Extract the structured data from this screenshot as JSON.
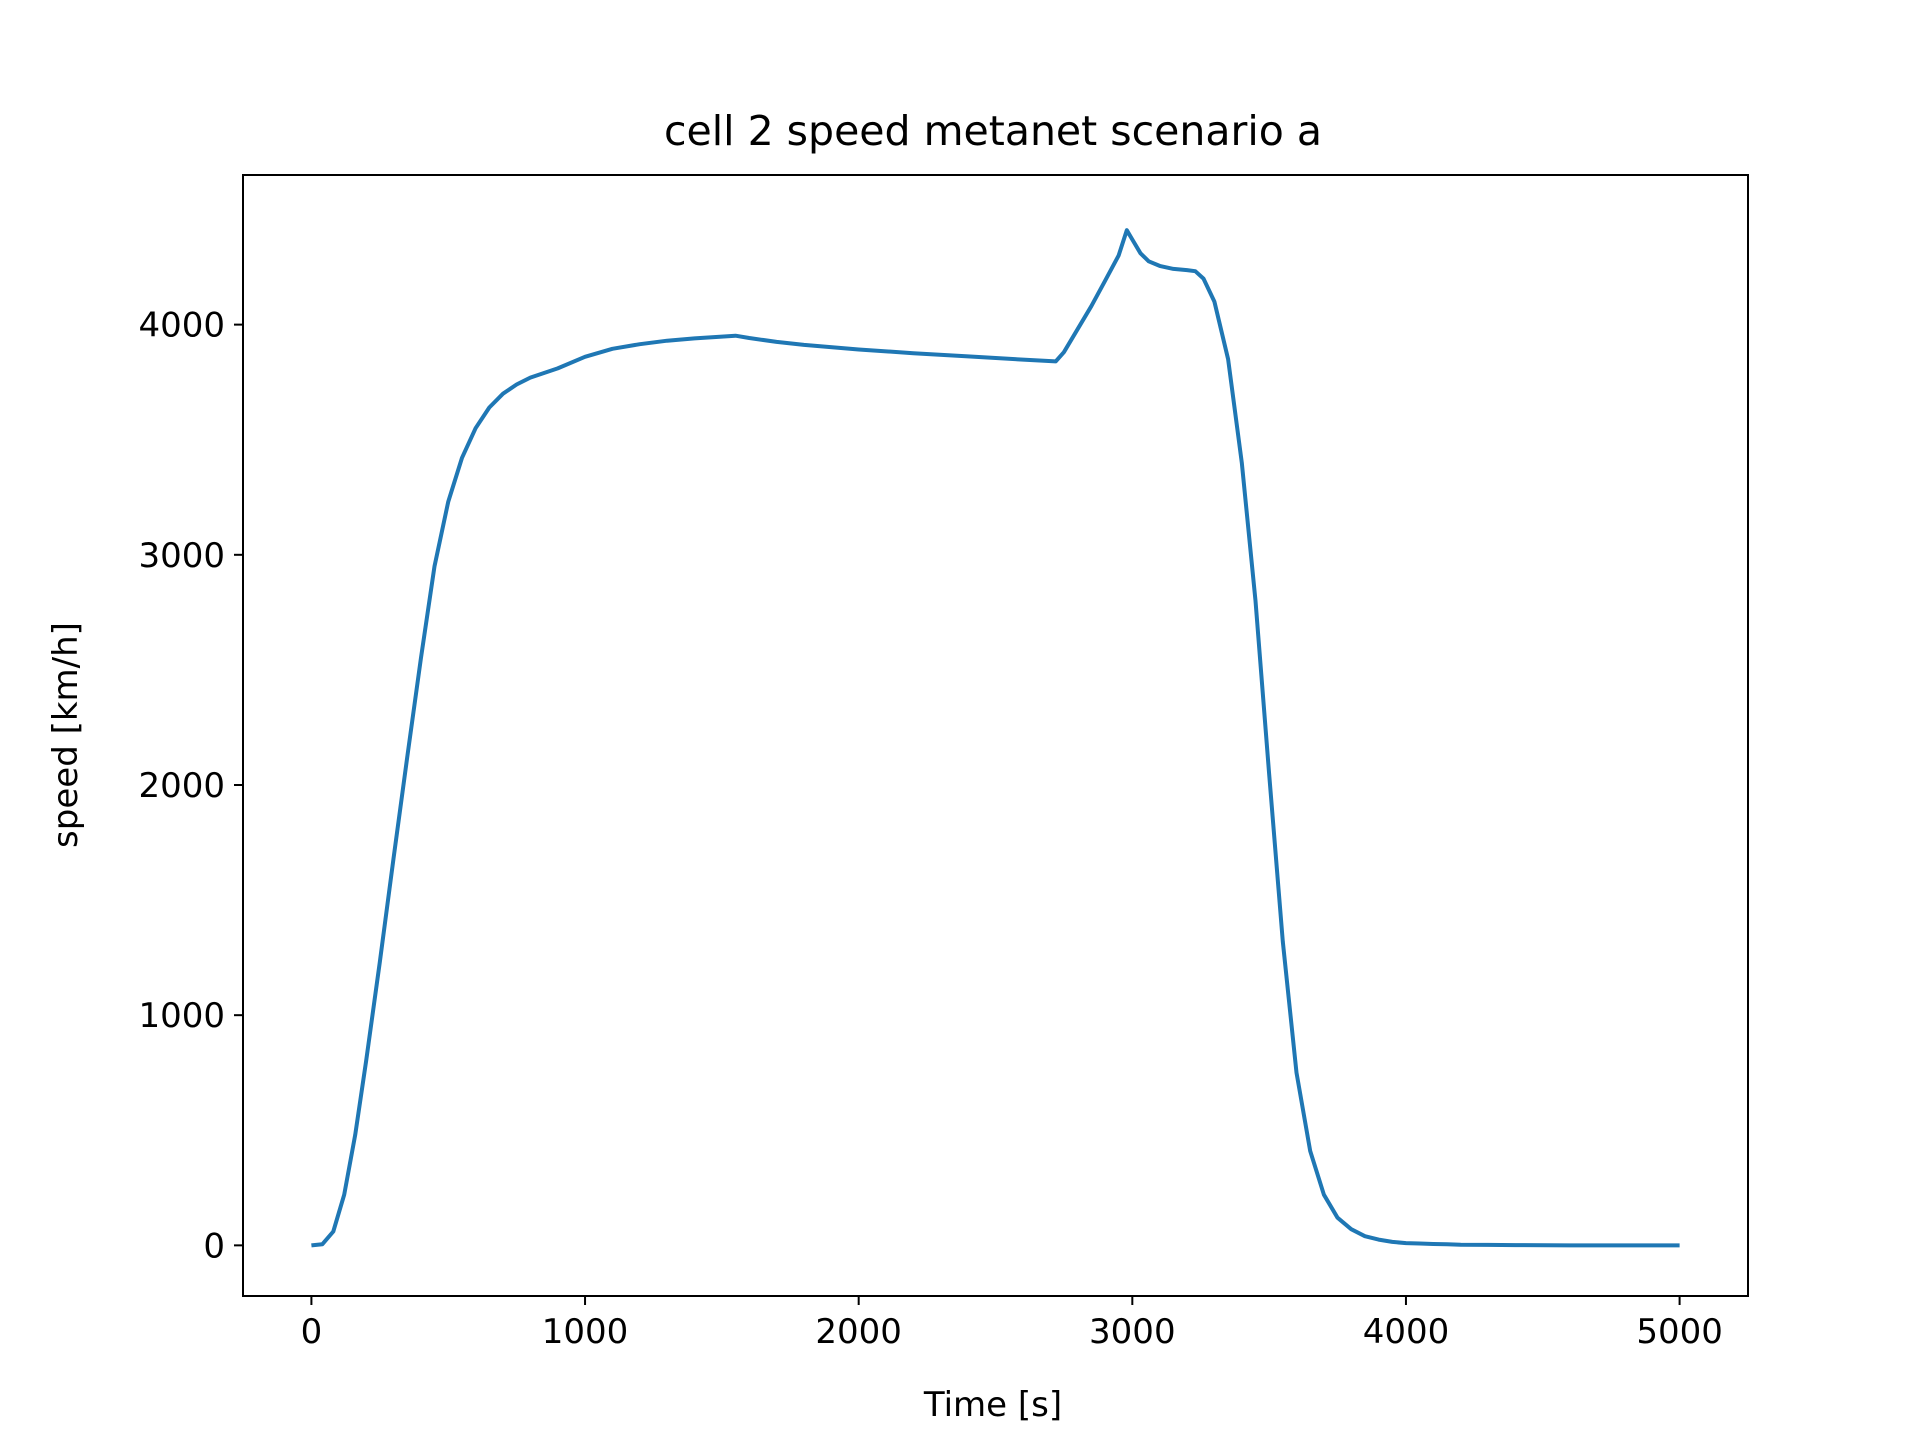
{
  "chart_data": {
    "type": "line",
    "title": "cell 2 speed metanet scenario a",
    "xlabel": "Time [s]",
    "ylabel": "speed [km/h]",
    "xlim": [
      -250,
      5250
    ],
    "ylim": [
      -220,
      4650
    ],
    "xticks": [
      0,
      1000,
      2000,
      3000,
      4000,
      5000
    ],
    "yticks": [
      0,
      1000,
      2000,
      3000,
      4000
    ],
    "xtick_labels": [
      "0",
      "1000",
      "2000",
      "3000",
      "4000",
      "5000"
    ],
    "ytick_labels": [
      "0",
      "1000",
      "2000",
      "3000",
      "4000"
    ],
    "grid": false,
    "color": "#1f77b4",
    "series": [
      {
        "x": [
          0,
          40,
          80,
          120,
          160,
          200,
          250,
          300,
          350,
          400,
          450,
          500,
          550,
          600,
          650,
          700,
          750,
          800,
          850,
          900,
          1000,
          1100,
          1200,
          1300,
          1400,
          1500,
          1550,
          1600,
          1700,
          1800,
          2000,
          2200,
          2400,
          2600,
          2720,
          2750,
          2800,
          2850,
          2900,
          2950,
          2980,
          3000,
          3030,
          3060,
          3100,
          3150,
          3200,
          3230,
          3260,
          3300,
          3350,
          3400,
          3450,
          3500,
          3550,
          3600,
          3650,
          3700,
          3750,
          3800,
          3850,
          3900,
          3950,
          4000,
          4050,
          4100,
          4150,
          4200,
          4300,
          4400,
          4600,
          4800,
          5000
        ],
        "y": [
          0,
          5,
          60,
          220,
          480,
          800,
          1230,
          1680,
          2120,
          2550,
          2950,
          3230,
          3420,
          3550,
          3640,
          3700,
          3740,
          3770,
          3790,
          3810,
          3860,
          3895,
          3915,
          3930,
          3940,
          3948,
          3952,
          3942,
          3925,
          3912,
          3892,
          3876,
          3862,
          3848,
          3840,
          3880,
          3980,
          4080,
          4190,
          4300,
          4410,
          4370,
          4310,
          4275,
          4255,
          4242,
          4237,
          4232,
          4200,
          4100,
          3850,
          3400,
          2800,
          2050,
          1320,
          750,
          410,
          220,
          120,
          70,
          40,
          25,
          15,
          10,
          8,
          6,
          5,
          3,
          2,
          1,
          0,
          0,
          0
        ]
      }
    ]
  }
}
